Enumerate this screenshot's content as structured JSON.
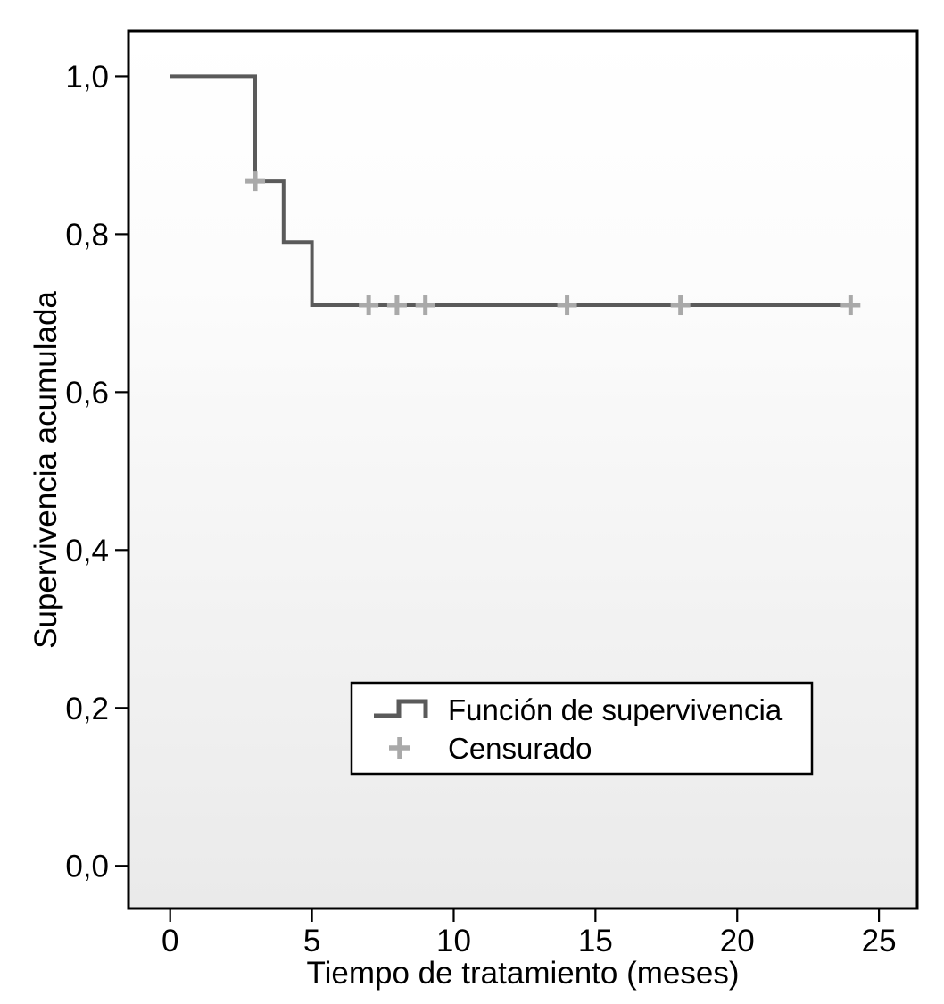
{
  "chart_data": {
    "type": "line",
    "subtype": "kaplan-meier-step-survival",
    "xlabel": "Tiempo de tratamiento (meses)",
    "ylabel": "Supervivencia acumulada",
    "grid": false,
    "xlim": [
      -1.47,
      26.35
    ],
    "ylim": [
      -0.054,
      1.057
    ],
    "x_ticks": [
      {
        "value": 0,
        "label": "0"
      },
      {
        "value": 5,
        "label": "5"
      },
      {
        "value": 10,
        "label": "10"
      },
      {
        "value": 15,
        "label": "15"
      },
      {
        "value": 20,
        "label": "20"
      },
      {
        "value": 25,
        "label": "25"
      }
    ],
    "y_ticks": [
      {
        "value": 0.0,
        "label": "0,0"
      },
      {
        "value": 0.2,
        "label": "0,2"
      },
      {
        "value": 0.4,
        "label": "0,4"
      },
      {
        "value": 0.6,
        "label": "0,6"
      },
      {
        "value": 0.8,
        "label": "0,8"
      },
      {
        "value": 1.0,
        "label": "1,0"
      }
    ],
    "series": [
      {
        "name": "Función de supervivencia",
        "type": "step",
        "color": "#5a5a5a",
        "points": [
          [
            0,
            1.0
          ],
          [
            3,
            1.0
          ],
          [
            3,
            0.867
          ],
          [
            4,
            0.867
          ],
          [
            4,
            0.79
          ],
          [
            5,
            0.79
          ],
          [
            5,
            0.71
          ],
          [
            24,
            0.71
          ]
        ]
      }
    ],
    "censored": {
      "name": "Censurado",
      "marker": "plus",
      "color": "#a9a9a9",
      "points": [
        [
          3,
          0.867
        ],
        [
          7,
          0.71
        ],
        [
          8,
          0.71
        ],
        [
          9,
          0.71
        ],
        [
          14,
          0.71
        ],
        [
          18,
          0.71
        ],
        [
          24,
          0.71
        ]
      ]
    },
    "legend": {
      "position": "inside-bottom-center",
      "entries": [
        {
          "label": "Función de supervivencia",
          "marker": "step-line",
          "color": "#5a5a5a"
        },
        {
          "label": "Censurado",
          "marker": "plus",
          "color": "#a9a9a9"
        }
      ]
    },
    "colors": {
      "axis": "#000000",
      "plot_bg_top": "#ffffff",
      "plot_bg_bottom": "#eaeaea",
      "legend_bg": "#ffffff"
    }
  }
}
